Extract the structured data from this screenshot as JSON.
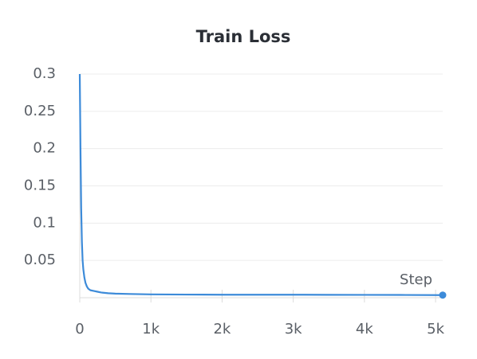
{
  "chart_data": {
    "type": "line",
    "title": "Train Loss",
    "x_label": "Step",
    "x": [
      0,
      10,
      20,
      30,
      40,
      50,
      65,
      80,
      100,
      120,
      150,
      200,
      250,
      300,
      400,
      500,
      700,
      1000,
      1500,
      2000,
      2500,
      3000,
      3500,
      4000,
      4500,
      5100
    ],
    "values": [
      0.3,
      0.2,
      0.12,
      0.075,
      0.05,
      0.038,
      0.027,
      0.02,
      0.015,
      0.012,
      0.01,
      0.009,
      0.008,
      0.007,
      0.006,
      0.0055,
      0.005,
      0.0045,
      0.0042,
      0.004,
      0.004,
      0.004,
      0.0039,
      0.0038,
      0.0037,
      0.0035
    ],
    "color": "#3d8bd9",
    "xlim": [
      0,
      5100
    ],
    "ylim": [
      0,
      0.3
    ],
    "xticks": [
      0,
      {
        "value": 1000,
        "label": "1k"
      },
      {
        "value": 2000,
        "label": "2k"
      },
      {
        "value": 3000,
        "label": "3k"
      },
      {
        "value": 4000,
        "label": "4k"
      },
      {
        "value": 5000,
        "label": "5k"
      }
    ],
    "yticks": [
      0.05,
      0.1,
      0.15,
      0.2,
      0.25,
      0.3
    ],
    "grid": true
  }
}
